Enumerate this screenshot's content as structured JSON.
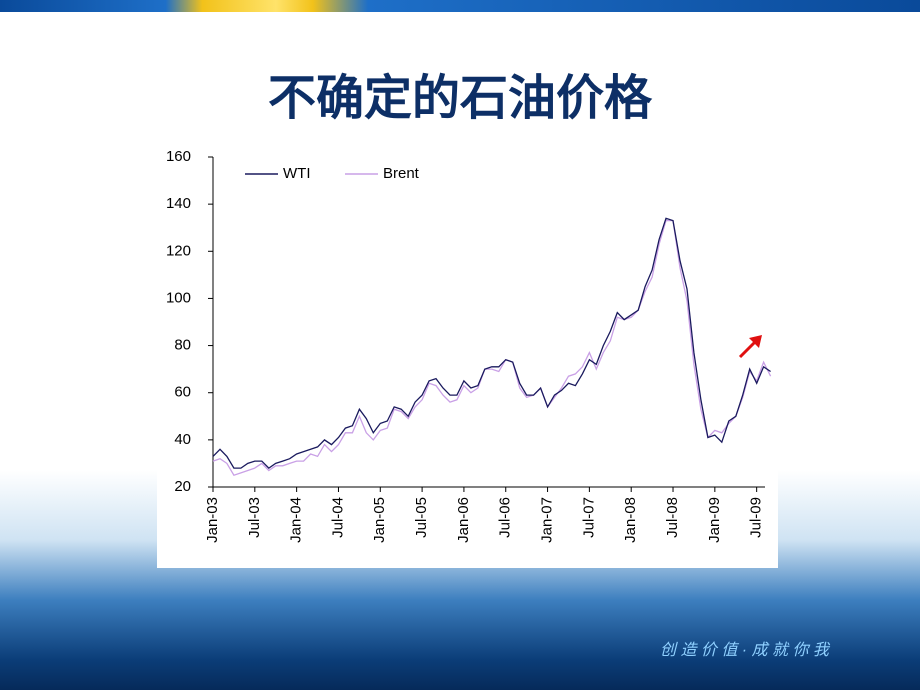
{
  "chart_data": {
    "type": "line",
    "title": "不确定的石油价格",
    "categories": [
      "Jan-03",
      null,
      null,
      null,
      null,
      null,
      "Jul-03",
      null,
      null,
      null,
      null,
      null,
      "Jan-04",
      null,
      null,
      null,
      null,
      null,
      "Jul-04",
      null,
      null,
      null,
      null,
      null,
      "Jan-05",
      null,
      null,
      null,
      null,
      null,
      "Jul-05",
      null,
      null,
      null,
      null,
      null,
      "Jan-06",
      null,
      null,
      null,
      null,
      null,
      "Jul-06",
      null,
      null,
      null,
      null,
      null,
      "Jan-07",
      null,
      null,
      null,
      null,
      null,
      "Jul-07",
      null,
      null,
      null,
      null,
      null,
      "Jan-08",
      null,
      null,
      null,
      null,
      null,
      "Jul-08",
      null,
      null,
      null,
      null,
      null,
      "Jan-09",
      null,
      null,
      null,
      null,
      null,
      "Jul-09",
      null,
      null
    ],
    "series": [
      {
        "name": "WTI",
        "color": "#1a1a5e",
        "values": [
          33,
          36,
          33,
          28,
          28,
          30,
          31,
          31,
          28,
          30,
          31,
          32,
          34,
          35,
          36,
          37,
          40,
          38,
          41,
          45,
          46,
          53,
          49,
          43,
          47,
          48,
          54,
          53,
          50,
          56,
          59,
          65,
          66,
          62,
          59,
          59,
          65,
          62,
          63,
          70,
          71,
          71,
          74,
          73,
          64,
          59,
          59,
          62,
          54,
          59,
          61,
          64,
          63,
          68,
          74,
          72,
          80,
          86,
          94,
          91,
          93,
          95,
          105,
          112,
          125,
          134,
          133,
          116,
          104,
          77,
          57,
          41,
          42,
          39,
          48,
          50,
          59,
          70,
          64,
          71,
          69
        ]
      },
      {
        "name": "Brent",
        "color": "#c9a0e6",
        "values": [
          31,
          32,
          30,
          25,
          26,
          27,
          28,
          30,
          27,
          29,
          29,
          30,
          31,
          31,
          34,
          33,
          38,
          35,
          38,
          43,
          43,
          50,
          43,
          40,
          44,
          45,
          53,
          52,
          49,
          54,
          57,
          64,
          63,
          59,
          56,
          57,
          63,
          60,
          62,
          70,
          70,
          69,
          74,
          73,
          62,
          58,
          59,
          62,
          54,
          58,
          62,
          67,
          68,
          71,
          77,
          70,
          77,
          82,
          92,
          91,
          92,
          95,
          103,
          109,
          123,
          133,
          133,
          113,
          99,
          72,
          53,
          41,
          44,
          43,
          47,
          50,
          58,
          69,
          65,
          73,
          67
        ]
      }
    ],
    "ylim": [
      20,
      160
    ],
    "yticks": [
      20,
      40,
      60,
      80,
      100,
      120,
      140,
      160
    ],
    "legend": "top-left"
  },
  "footer": "创 造 价 值 · 成 就 你 我"
}
